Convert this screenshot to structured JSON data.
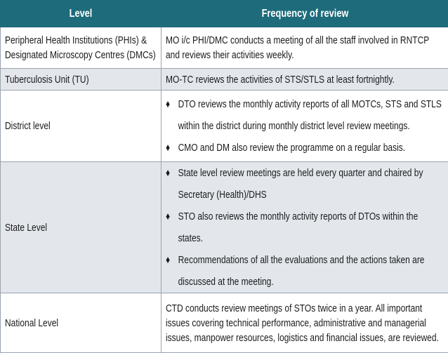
{
  "table": {
    "header": [
      "Level",
      "Frequency of review"
    ],
    "rows": [
      {
        "level": "Peripheral Health Institutions (PHIs) & Designated Microscopy Centres (DMCs)",
        "review": [
          "MO i/c PHI/DMC conducts a meeting of all the staff involved in RNTCP and reviews their activities weekly."
        ]
      },
      {
        "level": "Tuberculosis Unit (TU)",
        "review": [
          "MO-TC reviews the activities of STS/STLS at least fortnightly."
        ]
      },
      {
        "level": "District level",
        "bullets": [
          "DTO reviews the monthly activity reports of all MOTCs, STS and STLS within the district during monthly district level review meetings.",
          "CMO and DM also review the programme on a regular basis."
        ]
      },
      {
        "level": "State Level",
        "bullets": [
          "State level review meetings are held every quarter and chaired by Secretary (Health)/DHS",
          "STO also reviews the monthly activity reports of DTOs within the states.",
          "Recommendations of all the evaluations and the actions taken are discussed at the meeting."
        ]
      },
      {
        "level": "National Level",
        "review": [
          "CTD conducts review meetings of STOs twice in a year. All important issues covering technical performance, administrative and managerial issues, manpower resources, logistics and financial issues, are reviewed."
        ]
      }
    ]
  }
}
